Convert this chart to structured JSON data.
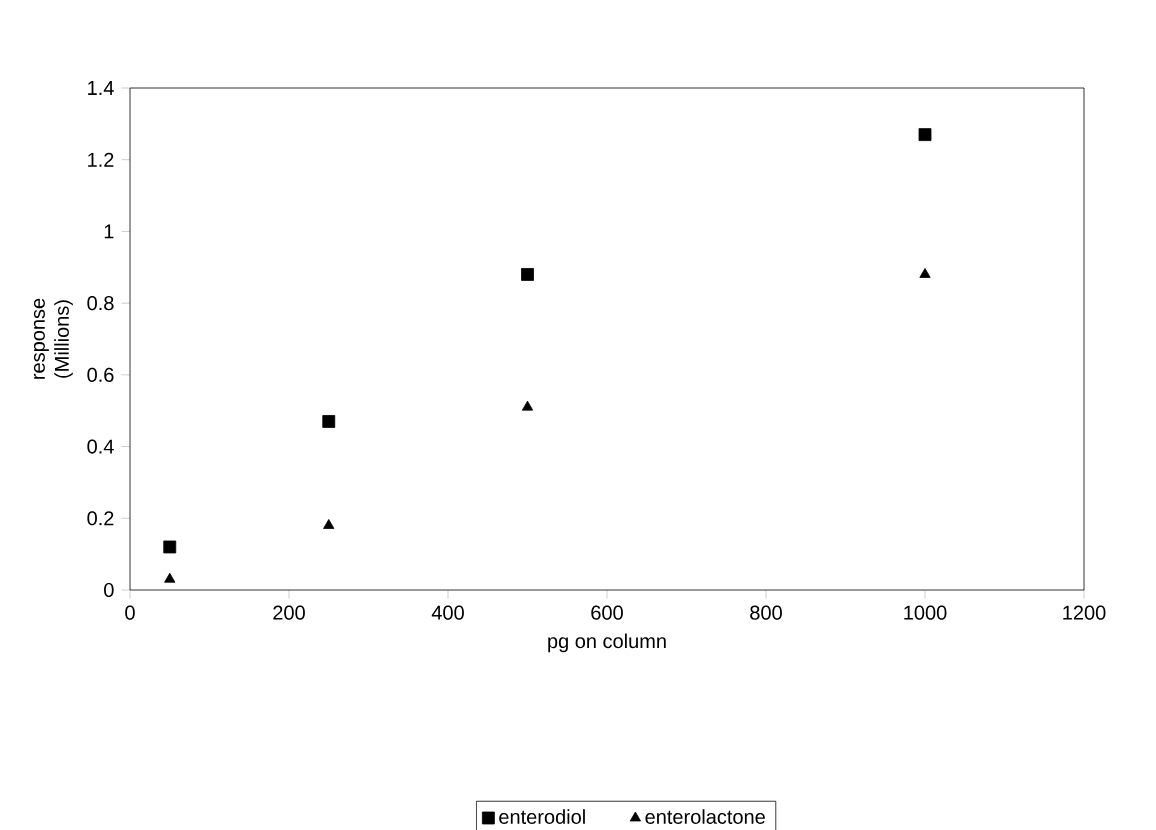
{
  "chart_data": {
    "type": "scatter",
    "xlabel": "pg on column",
    "ylabel": "response (Millions)",
    "xlim": [
      0,
      1200
    ],
    "xticks": [
      0,
      200,
      400,
      600,
      800,
      1000,
      1200
    ],
    "ylim": [
      0,
      1.4
    ],
    "yticks": [
      0,
      0.2,
      0.4,
      0.6,
      0.8,
      1,
      1.2,
      1.4
    ],
    "x": [
      50,
      250,
      500,
      1000
    ],
    "series": [
      {
        "name": "enterodiol",
        "color": "#000000",
        "marker": "square",
        "values": [
          0.12,
          0.47,
          0.88,
          1.27
        ]
      },
      {
        "name": "enterolactone",
        "color": "#000000",
        "marker": "triangle",
        "values": [
          0.03,
          0.18,
          0.51,
          0.88
        ]
      }
    ],
    "legend": "bottom",
    "grid": false
  }
}
